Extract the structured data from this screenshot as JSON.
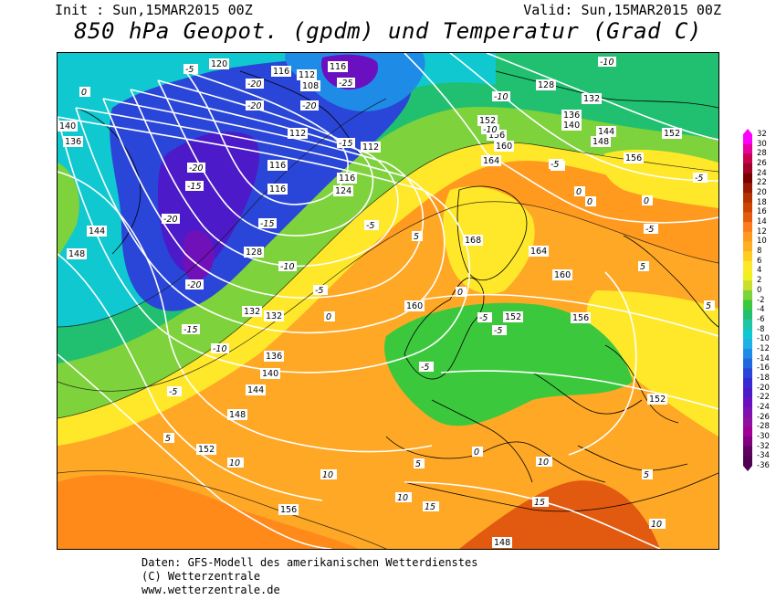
{
  "header": {
    "init": "Init : Sun,15MAR2015 00Z",
    "valid": "Valid: Sun,15MAR2015 00Z",
    "title": "850 hPa Geopot. (gpdm) und Temperatur (Grad C)"
  },
  "colorbar": {
    "ticks": [
      "32",
      "30",
      "28",
      "26",
      "24",
      "22",
      "20",
      "18",
      "16",
      "14",
      "12",
      "10",
      "8",
      "6",
      "4",
      "2",
      "0",
      "-2",
      "-4",
      "-6",
      "-8",
      "-10",
      "-12",
      "-14",
      "-16",
      "-18",
      "-20",
      "-22",
      "-24",
      "-26",
      "-28",
      "-30",
      "-32",
      "-34",
      "-36"
    ],
    "colors": [
      "#ff00ff",
      "#e600a0",
      "#c80050",
      "#a0002a",
      "#7a0000",
      "#9a1a00",
      "#b43200",
      "#cc4400",
      "#e35a10",
      "#ff7a1a",
      "#ff9a1f",
      "#ffb020",
      "#ffcc22",
      "#ffe82a",
      "#f0f020",
      "#c8e02c",
      "#7ed23c",
      "#3cc83c",
      "#20c070",
      "#1ec6a6",
      "#10c8d0",
      "#20b0e8",
      "#1e8ce6",
      "#2068e0",
      "#2a46d8",
      "#3a2ad2",
      "#4c1ac8",
      "#6a10c0",
      "#8010b0",
      "#9010a0",
      "#a00098",
      "#800080",
      "#600060",
      "#500050"
    ]
  },
  "map": {
    "isohypse_labels": [
      "120",
      "116",
      "112",
      "108",
      "116",
      "112",
      "116",
      "116",
      "124",
      "128",
      "132",
      "136",
      "140",
      "144",
      "148",
      "152",
      "156",
      "160",
      "164",
      "168",
      "140",
      "136",
      "144",
      "148",
      "152",
      "156",
      "160",
      "152",
      "156",
      "160",
      "164",
      "168",
      "132",
      "128",
      "132",
      "136",
      "140",
      "144",
      "148",
      "152",
      "148",
      "152",
      "156",
      "124",
      "120",
      "116",
      "112"
    ],
    "isotherm_labels": [
      "-5",
      "-20",
      "-20",
      "-20",
      "-25",
      "-20",
      "-15",
      "-15",
      "-20",
      "-15",
      "-10",
      "-10",
      "-5",
      "-5",
      "0",
      "0",
      "5",
      "5",
      "-5",
      "-5",
      "-10",
      "-15",
      "-20",
      "0",
      "-5",
      "-10",
      "0",
      "5",
      "10",
      "10",
      "10",
      "15",
      "15",
      "10",
      "10",
      "5",
      "0",
      "-5",
      "-5",
      "0",
      "5",
      "-5",
      "-10",
      "-5",
      "0",
      "5",
      "-5"
    ]
  },
  "footer": {
    "line1": "Daten: GFS-Modell des amerikanischen Wetterdienstes",
    "line2": "(C) Wetterzentrale",
    "line3": "www.wetterzentrale.de"
  }
}
